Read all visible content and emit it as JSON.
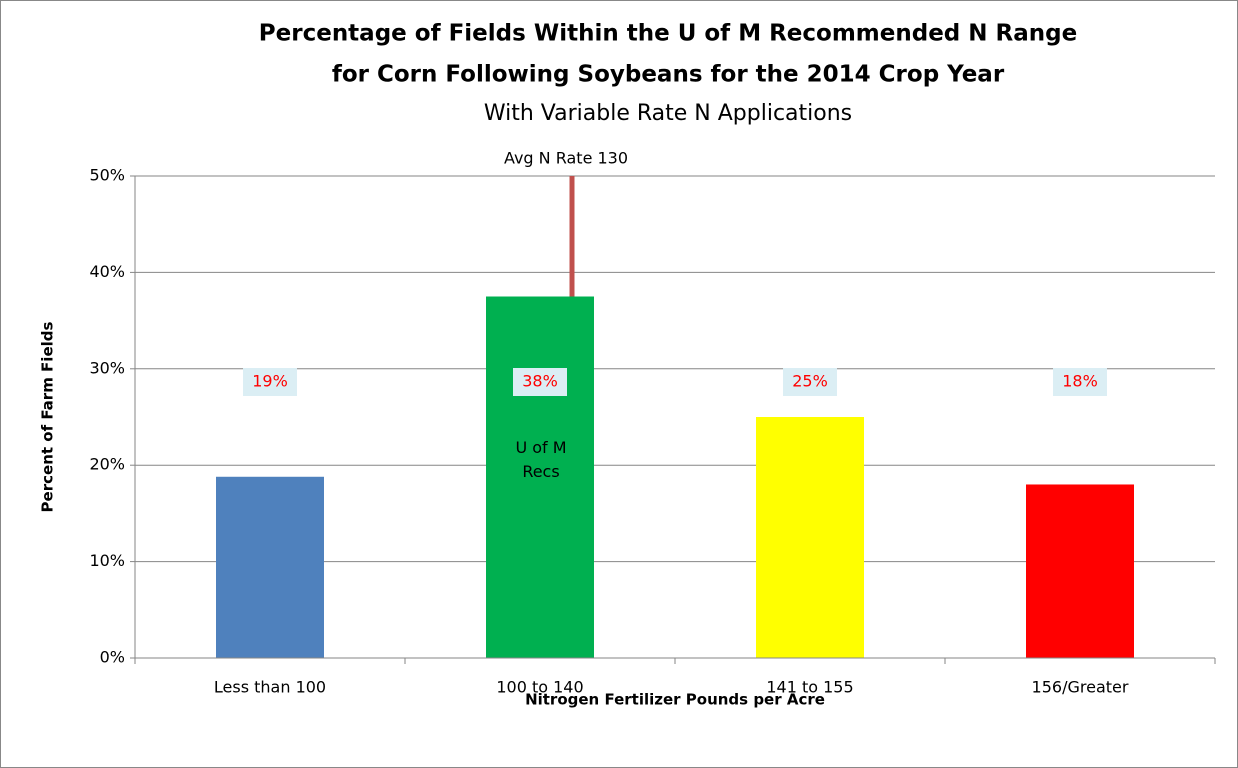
{
  "chart_data": {
    "type": "bar",
    "title": [
      "Percentage of Fields Within the U of M Recommended N Range",
      "for Corn Following Soybeans for the 2014 Crop Year"
    ],
    "subtitle": "With Variable Rate N Applications",
    "x_label": "Nitrogen Fertilizer Pounds per Acre",
    "y_label": "Percent of Farm Fields",
    "categories": [
      "Less than 100",
      "100 to 140",
      "141 to 155",
      "156/Greater"
    ],
    "values": [
      18.8,
      37.5,
      25,
      18
    ],
    "value_labels": [
      "19%",
      "38%",
      "25%",
      "18%"
    ],
    "colors": [
      "#4f81bd",
      "#00b050",
      "#ffff00",
      "#ff0000"
    ],
    "ylim": [
      0,
      50
    ],
    "yticks": [
      {
        "value": 0,
        "label": "0%"
      },
      {
        "value": 10,
        "label": "10%"
      },
      {
        "value": 20,
        "label": "20%"
      },
      {
        "value": 30,
        "label": "30%"
      },
      {
        "value": 40,
        "label": "40%"
      },
      {
        "value": 50,
        "label": "50%"
      }
    ],
    "grid": true,
    "annotations": [
      "Avg N Rate 130",
      "U of M Recs"
    ]
  }
}
